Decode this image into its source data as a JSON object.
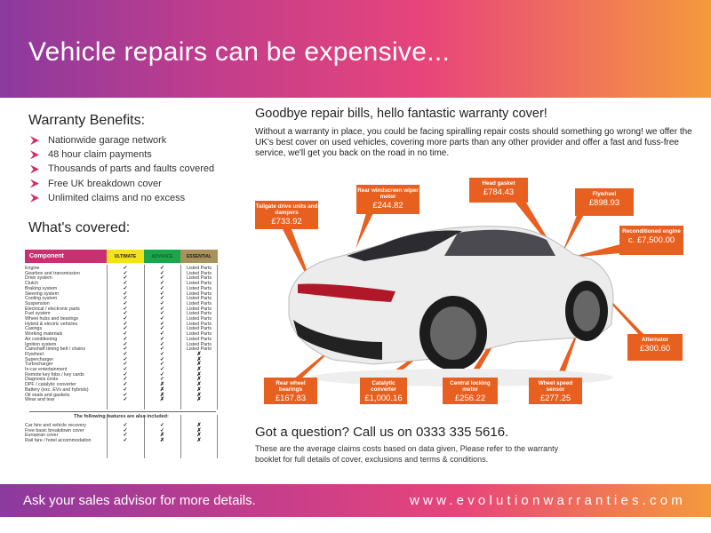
{
  "header": {
    "title": "Vehicle repairs can be expensive..."
  },
  "benefits": {
    "title": "Warranty Benefits:",
    "items": [
      "Nationwide garage network",
      "48 hour claim payments",
      "Thousands of parts and faults covered",
      "Free UK breakdown cover",
      "Unlimited claims and no excess"
    ]
  },
  "covered": {
    "title": "What's covered:",
    "columns": [
      "Component",
      "ULTIMATE",
      "ADVANCE",
      "ESSENTIAL"
    ],
    "column_colors": [
      "#c9306f",
      "#f5e21a",
      "#1aa64a",
      "#a8915a"
    ],
    "rows": [
      [
        "Engine",
        "✓",
        "✓",
        "Listed Parts"
      ],
      [
        "Gearbox and transmission",
        "✓",
        "✓",
        "Listed Parts"
      ],
      [
        "Drive system",
        "✓",
        "✓",
        "Listed Parts"
      ],
      [
        "Clutch",
        "✓",
        "✓",
        "Listed Parts"
      ],
      [
        "Braking system",
        "✓",
        "✓",
        "Listed Parts"
      ],
      [
        "Steering system",
        "✓",
        "✓",
        "Listed Parts"
      ],
      [
        "Cooling system",
        "✓",
        "✓",
        "Listed Parts"
      ],
      [
        "Suspension",
        "✓",
        "✓",
        "Listed Parts"
      ],
      [
        "Electrical / electronic parts",
        "✓",
        "✓",
        "Listed Parts"
      ],
      [
        "Fuel system",
        "✓",
        "✓",
        "Listed Parts"
      ],
      [
        "Wheel hubs and bearings",
        "✓",
        "✓",
        "Listed Parts"
      ],
      [
        "Hybrid & electric vehicles",
        "✓",
        "✓",
        "Listed Parts"
      ],
      [
        "Casings",
        "✓",
        "✓",
        "Listed Parts"
      ],
      [
        "Working materials",
        "✓",
        "✓",
        "Listed Parts"
      ],
      [
        "Air conditioning",
        "✓",
        "✓",
        "Listed Parts"
      ],
      [
        "Ignition system",
        "✓",
        "✓",
        "Listed Parts"
      ],
      [
        "Camshaft timing belt / chains",
        "✓",
        "✓",
        "Listed Parts"
      ],
      [
        "Flywheel",
        "✓",
        "✓",
        "✗"
      ],
      [
        "Supercharger",
        "✓",
        "✓",
        "✗"
      ],
      [
        "Turbocharger",
        "✓",
        "✓",
        "✗"
      ],
      [
        "In-car entertainment",
        "✓",
        "✓",
        "✗"
      ],
      [
        "Remote key fobs / key cards",
        "✓",
        "✓",
        "✗"
      ],
      [
        "Diagnosis costs",
        "✓",
        "✓",
        "✗"
      ],
      [
        "DPF / catalytic converter",
        "✓",
        "✗",
        "✗"
      ],
      [
        "Battery (exc. EVs and hybrids)",
        "✓",
        "✗",
        "✗"
      ],
      [
        "Oil seals and gaskets",
        "✓",
        "✗",
        "✗"
      ],
      [
        "Wear and tear",
        "✓",
        "✗",
        "✗"
      ]
    ],
    "extras_title": "The following features are also included:",
    "extras": [
      [
        "Car hire and vehicle recovery",
        "✓",
        "✓",
        "✗"
      ],
      [
        "Free basic breakdown cover",
        "✓",
        "✓",
        "✗"
      ],
      [
        "European cover",
        "✓",
        "✗",
        "✗"
      ],
      [
        "Rail fare / hotel accommodation",
        "✓",
        "✗",
        "✗"
      ]
    ]
  },
  "intro": {
    "title": "Goodbye repair bills, hello fantastic warranty cover!",
    "body": "Without a warranty in place, you could be facing spiralling repair costs should something go wrong! we offer the UK's best cover on used vehicles, covering more parts than any other provider and offer a fast and fuss-free service, we'll get you back on the road in no time."
  },
  "callouts": [
    {
      "label": "Tailgate drive units and dampers",
      "value": "£733.92"
    },
    {
      "label": "Rear windscreen wiper motor",
      "value": "£244.82"
    },
    {
      "label": "Head gasket",
      "value": "£784.43"
    },
    {
      "label": "Flywheel",
      "value": "£898.93"
    },
    {
      "label": "Reconditioned engine",
      "value": "c. £7,500.00"
    },
    {
      "label": "Alternator",
      "value": "£300.60"
    },
    {
      "label": "Rear wheel bearings",
      "value": "£167.83"
    },
    {
      "label": "Catalytic converter",
      "value": "£1,000.16"
    },
    {
      "label": "Central locking motor",
      "value": "£256.22"
    },
    {
      "label": "Wheel speed sensor",
      "value": "£277.25"
    }
  ],
  "callout_color": "#e8601f",
  "contact": {
    "title": "Got a question? Call us on 0333 335 5616.",
    "note": "These are the average claims costs based on data given, Please refer to the warranty booklet for full details of cover, exclusions and terms & conditions."
  },
  "footer": {
    "left": "Ask your sales advisor for more details.",
    "right": "www.evolutionwarranties.com"
  }
}
